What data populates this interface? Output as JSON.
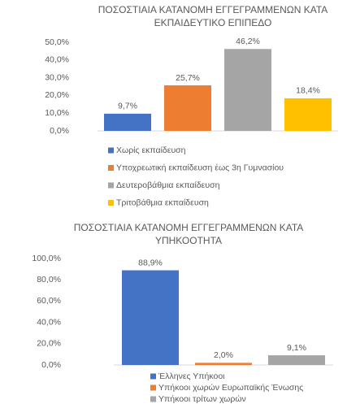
{
  "chart_data": [
    {
      "type": "bar",
      "title": [
        "ΠΟΣΟΣΤΙΑΙΑ ΚΑΤΑΝΟΜΗ ΕΓΓΕΓΡΑΜΜΕΝΩΝ ΚΑΤΑ",
        "ΕΚΠΑΙΔΕΥΤΙΚΟ ΕΠΙΠΕΔΟ"
      ],
      "categories": [
        "Χωρίς εκπαίδευση",
        "Υποχρεωτική εκπαίδευση έως 3η Γυμνασίου",
        "Δευτεροβάθμια εκπαίδευση",
        "Τριτοβάθμια εκπαίδευση"
      ],
      "values": [
        9.7,
        25.7,
        46.2,
        18.4
      ],
      "value_labels": [
        "9,7%",
        "25,7%",
        "46,2%",
        "18,4%"
      ],
      "colors": [
        "#4472c4",
        "#ed7d31",
        "#a5a5a5",
        "#ffc000"
      ],
      "ylim": [
        0,
        50
      ],
      "yticks": [
        {
          "value": 0,
          "label": "0,0%"
        },
        {
          "value": 10,
          "label": "10,0%"
        },
        {
          "value": 20,
          "label": "20,0%"
        },
        {
          "value": 30,
          "label": "30,0%"
        },
        {
          "value": 40,
          "label": "40,0%"
        },
        {
          "value": 50,
          "label": "50,0%"
        }
      ]
    },
    {
      "type": "bar",
      "title": [
        "ΠΟΣΟΣΤΙΑΙΑ ΚΑΤΑΝΟΜΗ  ΕΓΓΕΓΡΑΜΜΕΝΩΝ ΚΑΤΑ",
        "ΥΠΗΚΟΟΤΗΤΑ"
      ],
      "categories": [
        "Έλληνες Υπήκοοι",
        "Υπήκοοι χωρών Ευρωπαϊκής Ένωσης",
        "Υπήκοοι τρίτων χωρών"
      ],
      "values": [
        88.9,
        2.0,
        9.1
      ],
      "value_labels": [
        "88,9%",
        "2,0%",
        "9,1%"
      ],
      "colors": [
        "#4472c4",
        "#ed7d31",
        "#a5a5a5"
      ],
      "ylim": [
        0,
        100
      ],
      "yticks": [
        {
          "value": 0,
          "label": "0,0%"
        },
        {
          "value": 20,
          "label": "20,0%"
        },
        {
          "value": 40,
          "label": "40,0%"
        },
        {
          "value": 60,
          "label": "60,0%"
        },
        {
          "value": 80,
          "label": "80,0%"
        },
        {
          "value": 100,
          "label": "100,0%"
        }
      ]
    }
  ]
}
